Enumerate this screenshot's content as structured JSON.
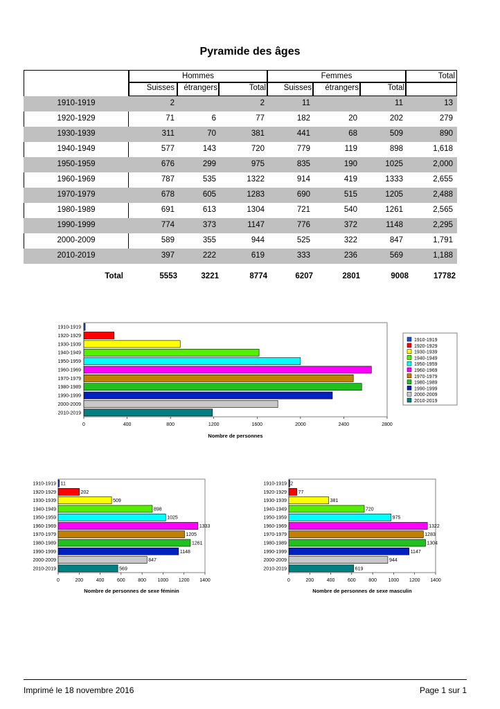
{
  "title": "Pyramide des âges",
  "table": {
    "group_hommes": "Hommes",
    "group_femmes": "Femmes",
    "group_total": "Total",
    "col_h_suisses": "Suisses",
    "col_h_etrangers": "étrangers",
    "col_h_total": "Total",
    "col_f_suisses": "Suisses",
    "col_f_etrangers": "étrangers",
    "col_f_total": "Total",
    "rows": [
      {
        "label": "1910-1919",
        "h_suisses": "2",
        "h_etrangers": "",
        "h_total": "2",
        "f_suisses": "11",
        "f_etrangers": "",
        "f_total": "11",
        "total": "13"
      },
      {
        "label": "1920-1929",
        "h_suisses": "71",
        "h_etrangers": "6",
        "h_total": "77",
        "f_suisses": "182",
        "f_etrangers": "20",
        "f_total": "202",
        "total": "279"
      },
      {
        "label": "1930-1939",
        "h_suisses": "311",
        "h_etrangers": "70",
        "h_total": "381",
        "f_suisses": "441",
        "f_etrangers": "68",
        "f_total": "509",
        "total": "890"
      },
      {
        "label": "1940-1949",
        "h_suisses": "577",
        "h_etrangers": "143",
        "h_total": "720",
        "f_suisses": "779",
        "f_etrangers": "119",
        "f_total": "898",
        "total": "1,618"
      },
      {
        "label": "1950-1959",
        "h_suisses": "676",
        "h_etrangers": "299",
        "h_total": "975",
        "f_suisses": "835",
        "f_etrangers": "190",
        "f_total": "1025",
        "total": "2,000"
      },
      {
        "label": "1960-1969",
        "h_suisses": "787",
        "h_etrangers": "535",
        "h_total": "1322",
        "f_suisses": "914",
        "f_etrangers": "419",
        "f_total": "1333",
        "total": "2,655"
      },
      {
        "label": "1970-1979",
        "h_suisses": "678",
        "h_etrangers": "605",
        "h_total": "1283",
        "f_suisses": "690",
        "f_etrangers": "515",
        "f_total": "1205",
        "total": "2,488"
      },
      {
        "label": "1980-1989",
        "h_suisses": "691",
        "h_etrangers": "613",
        "h_total": "1304",
        "f_suisses": "721",
        "f_etrangers": "540",
        "f_total": "1261",
        "total": "2,565"
      },
      {
        "label": "1990-1999",
        "h_suisses": "774",
        "h_etrangers": "373",
        "h_total": "1147",
        "f_suisses": "776",
        "f_etrangers": "372",
        "f_total": "1148",
        "total": "2,295"
      },
      {
        "label": "2000-2009",
        "h_suisses": "589",
        "h_etrangers": "355",
        "h_total": "944",
        "f_suisses": "525",
        "f_etrangers": "322",
        "f_total": "847",
        "total": "1,791"
      },
      {
        "label": "2010-2019",
        "h_suisses": "397",
        "h_etrangers": "222",
        "h_total": "619",
        "f_suisses": "333",
        "f_etrangers": "236",
        "f_total": "569",
        "total": "1,188"
      }
    ],
    "totals": {
      "label": "Total",
      "h_suisses": "5553",
      "h_etrangers": "3221",
      "h_total": "8774",
      "f_suisses": "6207",
      "f_etrangers": "2801",
      "f_total": "9008",
      "total": "17782"
    }
  },
  "colors": [
    "#1f4fd6",
    "#ff0000",
    "#ffff00",
    "#55ee00",
    "#00ffff",
    "#ff00ff",
    "#c08000",
    "#20c020",
    "#0020c0",
    "#c8c8c8",
    "#008080"
  ],
  "chart_data": [
    {
      "type": "bar",
      "orientation": "horizontal",
      "categories": [
        "1910-1919",
        "1920-1929",
        "1930-1939",
        "1940-1949",
        "1950-1959",
        "1960-1969",
        "1970-1979",
        "1980-1989",
        "1990-1999",
        "2000-2009",
        "2010-2019"
      ],
      "values": [
        13,
        279,
        890,
        1618,
        2000,
        2655,
        2488,
        2565,
        2295,
        1791,
        1188
      ],
      "xlabel": "Nombre de personnes",
      "xlim": [
        0,
        2800
      ],
      "xticks": [
        "0",
        "400",
        "800",
        "1200",
        "1600",
        "2000",
        "2400",
        "2800"
      ],
      "legend": "right",
      "legend_entries": [
        "1910-1919",
        "1920-1929",
        "1930-1939",
        "1940-1949",
        "1950-1959",
        "1960-1969",
        "1970-1979",
        "1980-1989",
        "1990-1999",
        "2000-2009",
        "2010-2019"
      ],
      "data_labels": false
    },
    {
      "type": "bar",
      "orientation": "horizontal",
      "categories": [
        "1910-1919",
        "1920-1929",
        "1930-1939",
        "1940-1949",
        "1950-1959",
        "1960-1969",
        "1970-1979",
        "1980-1989",
        "1990-1999",
        "2000-2009",
        "2010-2019"
      ],
      "values": [
        11,
        202,
        509,
        898,
        1025,
        1333,
        1205,
        1261,
        1148,
        847,
        569
      ],
      "xlabel": "Nombre de personnes de sexe féminin",
      "xlim": [
        0,
        1400
      ],
      "xticks": [
        "0",
        "200",
        "400",
        "600",
        "800",
        "1000",
        "1200",
        "1400"
      ],
      "data_labels": true
    },
    {
      "type": "bar",
      "orientation": "horizontal",
      "categories": [
        "1910-1919",
        "1920-1929",
        "1930-1939",
        "1940-1949",
        "1950-1959",
        "1960-1969",
        "1970-1979",
        "1980-1989",
        "1990-1999",
        "2000-2009",
        "2010-2019"
      ],
      "values": [
        2,
        77,
        381,
        720,
        975,
        1322,
        1283,
        1304,
        1147,
        944,
        619
      ],
      "xlabel": "Nombre de personnes de sexe masculin",
      "xlim": [
        0,
        1400
      ],
      "xticks": [
        "0",
        "200",
        "400",
        "600",
        "800",
        "1000",
        "1200",
        "1400"
      ],
      "data_labels": true
    }
  ],
  "footer": {
    "printed": "Imprimé le 18 novembre 2016",
    "page": "Page 1 sur 1"
  }
}
